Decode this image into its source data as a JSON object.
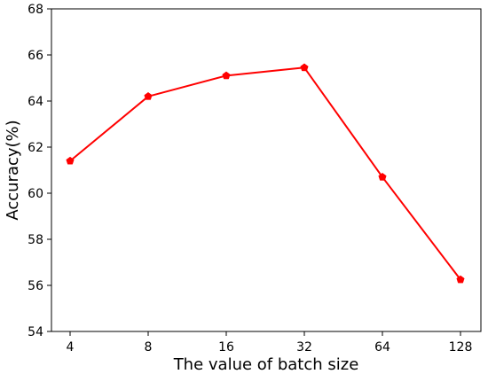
{
  "chart_data": {
    "type": "line",
    "xlabel": "The value of batch size",
    "ylabel": "Accuracy(%)",
    "categories": [
      "4",
      "8",
      "16",
      "32",
      "64",
      "128"
    ],
    "ylim": [
      54,
      68
    ],
    "yticks": [
      54,
      56,
      58,
      60,
      62,
      64,
      66,
      68
    ],
    "grid": false,
    "series": [
      {
        "values": [
          61.4,
          64.2,
          65.1,
          65.45,
          60.7,
          56.25
        ],
        "color": "#ff0000",
        "marker": "pentagon"
      }
    ]
  }
}
